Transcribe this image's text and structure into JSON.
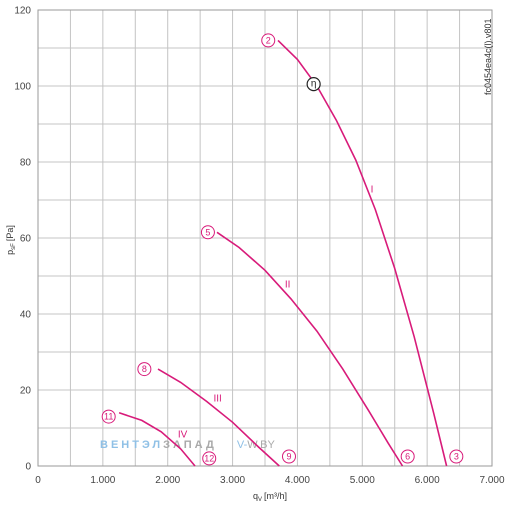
{
  "chart_data": {
    "type": "line",
    "xlabel": "q",
    "xlabel_sub": "V",
    "xlabel_unit": "[m³/h]",
    "ylabel": "p",
    "ylabel_sub": "sF",
    "ylabel_unit": "[Pa]",
    "xlim": [
      0,
      7000
    ],
    "ylim": [
      0,
      120
    ],
    "xticks": [
      0,
      1000,
      2000,
      3000,
      4000,
      5000,
      6000,
      7000
    ],
    "xtick_labels": [
      "0",
      "1.000",
      "2.000",
      "3.000",
      "4.000",
      "5.000",
      "6.000",
      "7.000"
    ],
    "yticks": [
      0,
      20,
      40,
      60,
      80,
      100,
      120
    ],
    "ytick_labels": [
      "0",
      "20",
      "40",
      "60",
      "80",
      "100",
      "120"
    ],
    "grid": true,
    "color": "#d81b7a",
    "series": [
      {
        "name": "I",
        "x": [
          3700,
          4000,
          4300,
          4600,
          4900,
          5200,
          5500,
          5800,
          6100,
          6300
        ],
        "y": [
          112,
          107,
          100,
          91,
          80.5,
          67.5,
          52,
          34,
          14,
          0
        ],
        "label_at": [
          5150,
          72
        ],
        "start_marker": "2",
        "start_marker_at": [
          3550,
          112
        ],
        "end_marker": "3",
        "end_marker_at": [
          6450,
          2.5
        ]
      },
      {
        "name": "II",
        "x": [
          2760,
          3100,
          3500,
          3900,
          4300,
          4700,
          5100,
          5400,
          5620
        ],
        "y": [
          61.5,
          57.5,
          51.5,
          44,
          35.5,
          25.5,
          14.5,
          6,
          0
        ],
        "label_at": [
          3850,
          47
        ],
        "start_marker": "5",
        "start_marker_at": [
          2620,
          61.5
        ],
        "end_marker": "6",
        "end_marker_at": [
          5700,
          2.5
        ]
      },
      {
        "name": "III",
        "x": [
          1850,
          2200,
          2600,
          3000,
          3400,
          3720
        ],
        "y": [
          25.5,
          22,
          17,
          11.5,
          5,
          0
        ],
        "label_at": [
          2770,
          17
        ],
        "start_marker": "8",
        "start_marker_at": [
          1640,
          25.5
        ],
        "end_marker": "9",
        "end_marker_at": [
          3870,
          2.5
        ]
      },
      {
        "name": "IV",
        "x": [
          1250,
          1600,
          1900,
          2200,
          2420
        ],
        "y": [
          14,
          12,
          9,
          4.5,
          0
        ],
        "label_at": [
          2230,
          7.5
        ],
        "start_marker": "11",
        "start_marker_at": [
          1090,
          13
        ],
        "end_marker": "12",
        "end_marker_at": [
          2640,
          2
        ]
      }
    ],
    "efficiency_marker": {
      "symbol": "η",
      "at": [
        4250,
        100.5
      ]
    },
    "code_label": "fc0454ea4c(l).v801"
  },
  "watermark": {
    "part1": "ВЕНТЭЛ",
    "part2": "ЗАПАД",
    "part3": "V-",
    "part4": "W.BY"
  }
}
